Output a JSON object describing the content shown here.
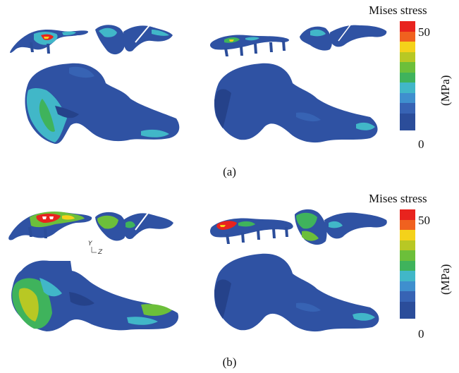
{
  "legend": {
    "title": "Mises stress",
    "unit": "(MPa)",
    "ticks": [
      "50",
      "0"
    ],
    "colors": [
      "#e8231e",
      "#f0611f",
      "#f4d21a",
      "#b8c824",
      "#6cbf3a",
      "#3fb35c",
      "#41b7c8",
      "#3f8fce",
      "#3763b4",
      "#2b4d9a"
    ]
  },
  "captions": {
    "a": "(a)",
    "b": "(b)"
  },
  "axis_triad": {
    "y": "Y",
    "z": "Z"
  },
  "palette": {
    "bone": "#2f52a3",
    "bone_dark": "#25428a",
    "plate": "#3560b0",
    "hot": "#e8231e",
    "green": "#3fb35c",
    "cyan": "#41b7c8",
    "yellow": "#f4d21a"
  }
}
